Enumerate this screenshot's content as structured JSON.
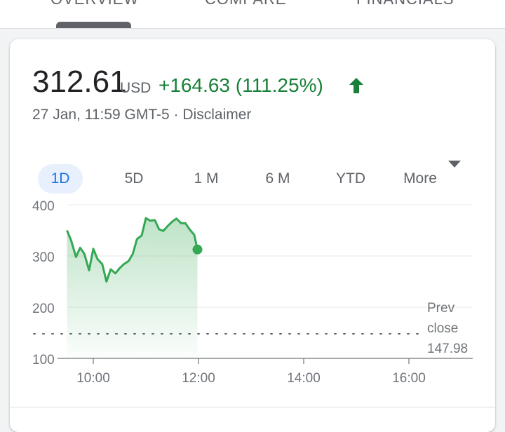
{
  "tabs": [
    {
      "label": "Overview"
    },
    {
      "label": "Compare"
    },
    {
      "label": "Financials"
    }
  ],
  "quote": {
    "price": "312.61",
    "currency": "USD",
    "change": "+164.63 (111.25%)",
    "timestamp": "27 Jan, 11:59 GMT-5",
    "separator": " · ",
    "disclaimer": "Disclaimer"
  },
  "ranges": [
    {
      "label": "1D",
      "active": true
    },
    {
      "label": "5D"
    },
    {
      "label": "1 M"
    },
    {
      "label": "6 M"
    },
    {
      "label": "YTD"
    },
    {
      "label": "More"
    }
  ],
  "colors": {
    "accent": "#1a73e8",
    "positive": "#188038",
    "line": "#34a853"
  },
  "chart_data": {
    "type": "area",
    "x_tick_labels": [
      "10:00",
      "12:00",
      "14:00",
      "16:00"
    ],
    "y_tick_labels": [
      "100",
      "200",
      "300",
      "400"
    ],
    "ylim": [
      100,
      400
    ],
    "xlim": [
      9.5,
      16.0
    ],
    "grid": true,
    "prev_close": {
      "label_lines": [
        "Prev",
        "close"
      ],
      "value": 147.98,
      "value_label": "147.98"
    },
    "series": [
      {
        "x": [
          9.5,
          9.58,
          9.67,
          9.75,
          9.83,
          9.92,
          10.0,
          10.08,
          10.17,
          10.25,
          10.33,
          10.42,
          10.5,
          10.58,
          10.67,
          10.75,
          10.83,
          10.92,
          11.0,
          11.08,
          11.17,
          11.25,
          11.33,
          11.42,
          11.5,
          11.58,
          11.67,
          11.75,
          11.83,
          11.92,
          11.98
        ],
        "y": [
          350,
          330,
          298,
          316,
          304,
          272,
          314,
          294,
          284,
          250,
          274,
          266,
          276,
          284,
          290,
          304,
          333,
          340,
          374,
          369,
          370,
          352,
          349,
          359,
          367,
          373,
          364,
          364,
          352,
          341,
          312.61
        ]
      }
    ]
  }
}
